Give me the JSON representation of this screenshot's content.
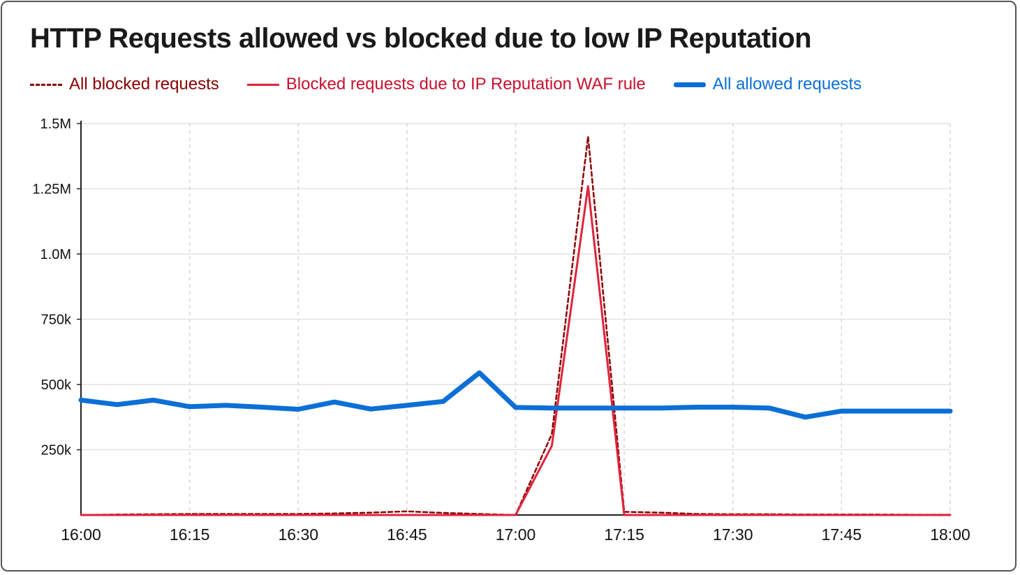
{
  "chart_data": {
    "type": "line",
    "title": "HTTP Requests allowed vs blocked due to low IP Reputation",
    "xlabel": "",
    "ylabel": "",
    "x": [
      "16:00",
      "16:05",
      "16:10",
      "16:15",
      "16:20",
      "16:25",
      "16:30",
      "16:35",
      "16:40",
      "16:45",
      "16:50",
      "16:55",
      "17:00",
      "17:05",
      "17:10",
      "17:15",
      "17:20",
      "17:25",
      "17:30",
      "17:35",
      "17:40",
      "17:45",
      "17:50",
      "17:55",
      "18:00"
    ],
    "x_tick_labels": [
      "16:00",
      "16:15",
      "16:30",
      "16:45",
      "17:00",
      "17:15",
      "17:30",
      "17:45",
      "18:00"
    ],
    "y_tick_values": [
      250000,
      500000,
      750000,
      1000000,
      1250000,
      1500000
    ],
    "y_tick_labels": [
      "250k",
      "500k",
      "750k",
      "1.0M",
      "1.25M",
      "1.5M"
    ],
    "ylim": [
      0,
      1500000
    ],
    "grid": true,
    "legend_position": "top-left",
    "series": [
      {
        "name": "All blocked requests",
        "style": "dashed",
        "color": "#8b0000",
        "values": [
          0,
          2000,
          3000,
          4000,
          4000,
          4000,
          4000,
          6000,
          9000,
          14000,
          8000,
          4000,
          0,
          310000,
          1450000,
          12000,
          9000,
          4000,
          3000,
          3000,
          2000,
          2000,
          2000,
          1000,
          1000
        ]
      },
      {
        "name": "Blocked requests due to IP Reputation WAF rule",
        "style": "solid",
        "color": "#e0243b",
        "values": [
          0,
          0,
          0,
          0,
          0,
          0,
          0,
          0,
          0,
          0,
          0,
          0,
          0,
          265000,
          1260000,
          0,
          0,
          0,
          0,
          0,
          0,
          0,
          0,
          0,
          0
        ]
      },
      {
        "name": "All allowed requests",
        "style": "thick",
        "color": "#0b6fd6",
        "values": [
          440000,
          423000,
          440000,
          415000,
          420000,
          413000,
          405000,
          433000,
          406000,
          420000,
          435000,
          545000,
          412000,
          410000,
          410000,
          410000,
          410000,
          413000,
          413000,
          410000,
          375000,
          398000,
          398000,
          398000,
          398000
        ]
      }
    ]
  }
}
